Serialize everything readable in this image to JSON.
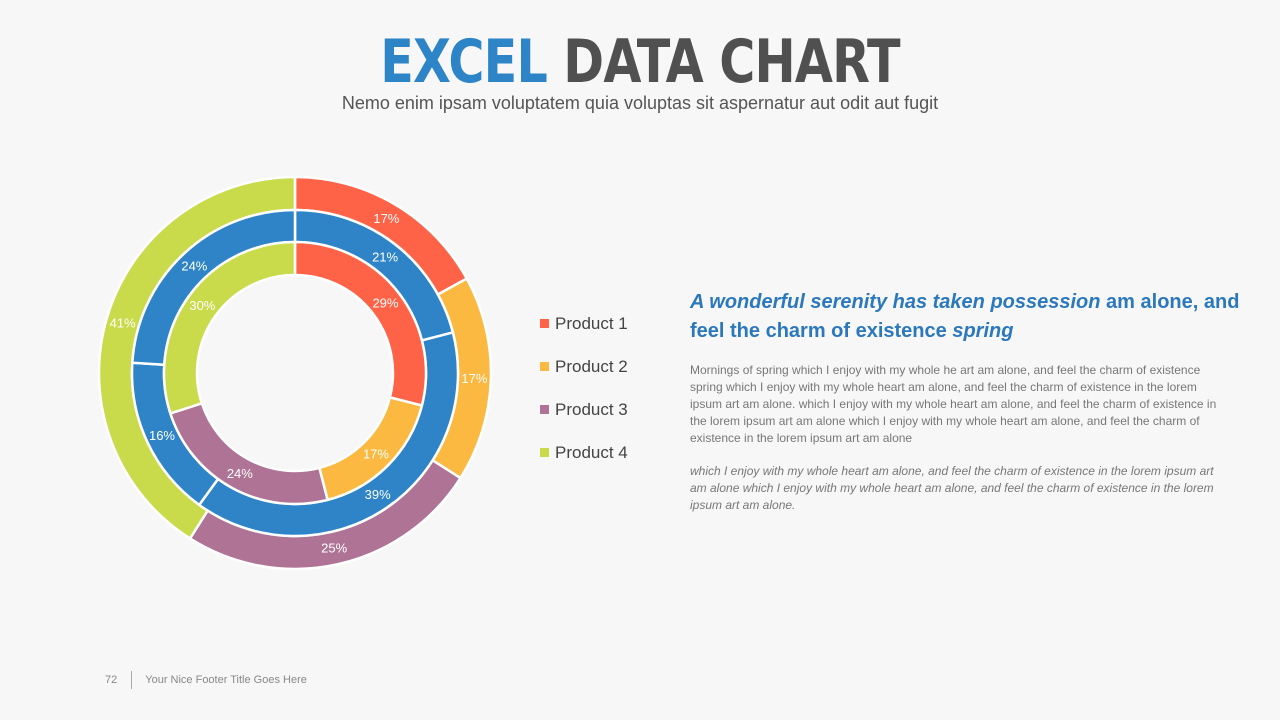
{
  "slide": {
    "title_accent": "EXCEL",
    "title_rest": "DATA CHART",
    "subtitle": "Nemo enim ipsam voluptatem quia voluptas sit aspernatur aut odit aut fugit",
    "heading": {
      "part1": "A wonderful serenity has taken possession",
      "part2": " am alone, and feel the charm of existence ",
      "part3": "spring"
    },
    "paragraph1": "Mornings of spring which I enjoy with my whole he art am alone, and feel the charm of existence spring which I enjoy with my whole heart am alone, and feel the charm of existence in the lorem ipsum art am alone. which I enjoy with my whole heart am alone, and feel the charm of existence in the lorem ipsum art am alone which I enjoy with my whole heart am alone, and feel the charm of existence in the lorem ipsum art am alone",
    "paragraph2": "which I enjoy with my whole heart am alone, and feel the charm of existence in the lorem ipsum art am alone which I enjoy with my whole heart am alone, and feel the charm of existence in the lorem ipsum art am alone.",
    "page_number": "72",
    "footer_text": "Your Nice Footer Title Goes Here"
  },
  "chart_data": {
    "type": "doughnut",
    "legend_position": "right",
    "categories": [
      "Product 1",
      "Product 2",
      "Product 3",
      "Product 4"
    ],
    "colors": [
      "#fe6247",
      "#fbb941",
      "#ae7395",
      "#c9da4b"
    ],
    "middle_ring_color": "#2e84c7",
    "rings": [
      {
        "ring": "outer",
        "values": [
          17,
          17,
          25,
          41
        ],
        "labels": [
          "17%",
          "17%",
          "25%",
          "41%"
        ]
      },
      {
        "ring": "middle",
        "values": [
          21,
          39,
          16,
          24
        ],
        "labels": [
          "21%",
          "39%",
          "16%",
          "24%"
        ]
      },
      {
        "ring": "inner",
        "values": [
          29,
          17,
          24,
          30
        ],
        "labels": [
          "29%",
          "17%",
          "24%",
          "30%"
        ]
      }
    ]
  }
}
